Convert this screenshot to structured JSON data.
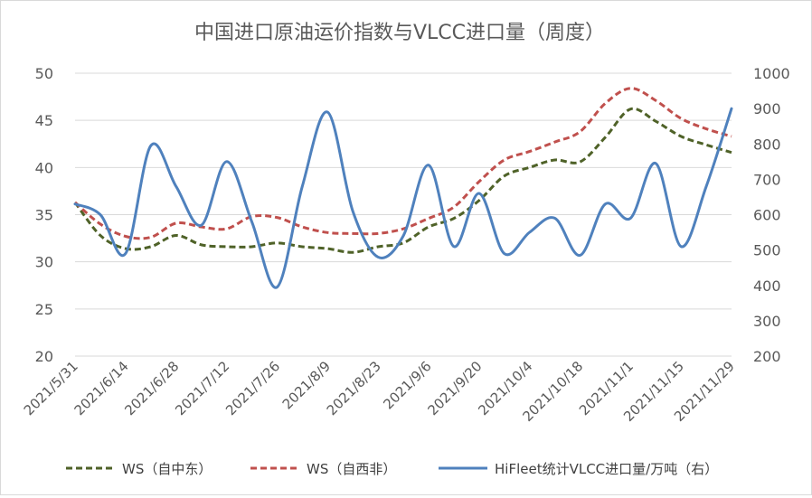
{
  "chart_data": {
    "type": "line",
    "title": "中国进口原油运价指数与VLCC进口量（周度）",
    "categories": [
      "2021/5/31",
      "2021/6/7",
      "2021/6/14",
      "2021/6/21",
      "2021/6/28",
      "2021/7/5",
      "2021/7/12",
      "2021/7/19",
      "2021/7/26",
      "2021/8/2",
      "2021/8/9",
      "2021/8/16",
      "2021/8/23",
      "2021/8/30",
      "2021/9/6",
      "2021/9/13",
      "2021/9/20",
      "2021/9/27",
      "2021/10/4",
      "2021/10/11",
      "2021/10/18",
      "2021/10/25",
      "2021/11/1",
      "2021/11/8",
      "2021/11/15",
      "2021/11/22",
      "2021/11/29"
    ],
    "x_tick_labels": [
      "2021/5/31",
      "2021/6/14",
      "2021/6/28",
      "2021/7/12",
      "2021/7/26",
      "2021/8/9",
      "2021/8/23",
      "2021/9/6",
      "2021/9/20",
      "2021/10/4",
      "2021/10/18",
      "2021/11/1",
      "2021/11/15",
      "2021/11/29"
    ],
    "y_left": {
      "min": 20,
      "max": 50,
      "ticks": [
        "20",
        "25",
        "30",
        "35",
        "40",
        "45",
        "50"
      ]
    },
    "y_right": {
      "min": 200,
      "max": 1000,
      "ticks": [
        "200",
        "300",
        "400",
        "500",
        "600",
        "700",
        "800",
        "900",
        "1000"
      ]
    },
    "series": [
      {
        "name": "WS（自中东）",
        "axis": "left",
        "color": "#4f6228",
        "dash": true,
        "values": [
          36.3,
          32.8,
          31.4,
          31.6,
          32.8,
          31.8,
          31.6,
          31.6,
          32.0,
          31.6,
          31.4,
          31.0,
          31.6,
          32.0,
          33.7,
          34.6,
          36.5,
          39.1,
          40.0,
          40.8,
          40.6,
          43.2,
          46.2,
          44.9,
          43.3,
          42.4,
          41.6
        ]
      },
      {
        "name": "WS（自西非）",
        "axis": "left",
        "color": "#c0504d",
        "dash": true,
        "values": [
          36.3,
          34.0,
          32.7,
          32.6,
          34.1,
          33.7,
          33.5,
          34.8,
          34.7,
          33.7,
          33.1,
          33.0,
          33.0,
          33.5,
          34.6,
          35.8,
          38.5,
          40.8,
          41.7,
          42.7,
          43.8,
          46.8,
          48.4,
          47.1,
          45.2,
          44.1,
          43.3
        ]
      },
      {
        "name": "HiFleet统计VLCC进口量/万吨（右）",
        "axis": "right",
        "color": "#4f81bd",
        "dash": false,
        "values": [
          630,
          600,
          490,
          795,
          680,
          570,
          750,
          580,
          395,
          680,
          890,
          610,
          480,
          540,
          740,
          510,
          660,
          490,
          550,
          590,
          485,
          630,
          590,
          745,
          510,
          680,
          900
        ]
      }
    ],
    "legend_position": "bottom",
    "grid": "horizontal"
  }
}
